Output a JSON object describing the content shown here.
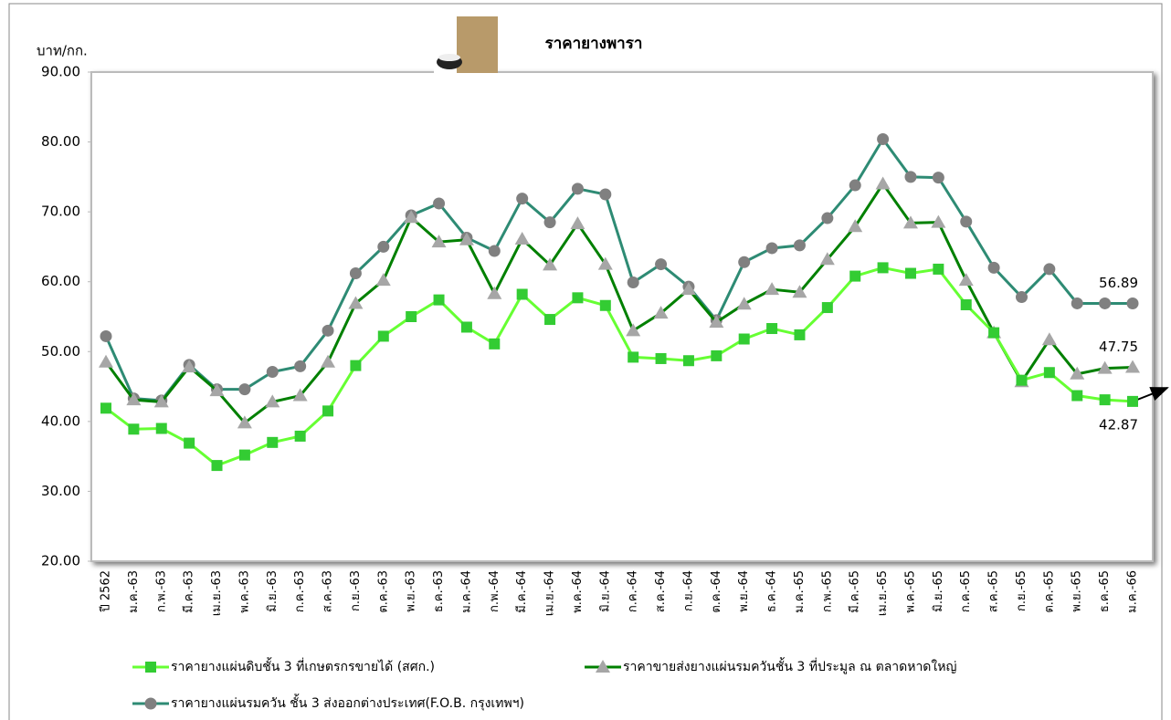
{
  "chart_data": {
    "type": "line",
    "title": "ราคายางพารา",
    "y_label": "บาท/กก.",
    "categories": [
      "ปี 2562",
      "ม.ค.-63",
      "ก.พ.-63",
      "มี.ค.-63",
      "เม.ย.-63",
      "พ.ค.-63",
      "มิ.ย.-63",
      "ก.ค.-63",
      "ส.ค.-63",
      "ก.ย.-63",
      "ต.ค.-63",
      "พ.ย.-63",
      "ธ.ค.-63",
      "ม.ค.-64",
      "ก.พ.-64",
      "มี.ค.-64",
      "เม.ย.-64",
      "พ.ค.-64",
      "มิ.ย.-64",
      "ก.ค.-64",
      "ส.ค.-64",
      "ก.ย.-64",
      "ต.ค.-64",
      "พ.ย.-64",
      "ธ.ค.-64",
      "ม.ค.-65",
      "ก.พ.-65",
      "มี.ค.-65",
      "เม.ย.-65",
      "พ.ค.-65",
      "มิ.ย.-65",
      "ก.ค.-65",
      "ส.ค.-65",
      "ก.ย.-65",
      "ต.ค.-65",
      "พ.ย.-65",
      "ธ.ค.-65",
      "ม.ค.-66"
    ],
    "series": [
      {
        "name": "ราคายางแผ่นดิบชั้น 3 ที่เกษตรกรขายได้ (สศก.)",
        "color": "#66ff33",
        "marker_color": "#33cc33",
        "marker": "square",
        "values": [
          41.9,
          38.9,
          39.0,
          36.9,
          33.7,
          35.2,
          37.0,
          37.9,
          41.5,
          48.0,
          52.2,
          55.0,
          57.4,
          53.5,
          51.1,
          58.2,
          54.6,
          57.7,
          56.6,
          49.2,
          49.0,
          48.7,
          49.4,
          51.8,
          53.3,
          52.4,
          56.3,
          60.8,
          62.0,
          61.2,
          61.8,
          56.7,
          52.7,
          45.9,
          47.0,
          43.7,
          43.1,
          42.87
        ]
      },
      {
        "name": "ราคาขายส่งยางแผ่นรมควันชั้น 3 ที่ประมูล ณ ตลาดหาดใหญ่",
        "color": "#008000",
        "marker_color": "#a6a6a6",
        "marker": "triangle",
        "values": [
          48.5,
          43.1,
          42.8,
          47.8,
          44.4,
          39.8,
          42.8,
          43.7,
          48.5,
          56.9,
          60.2,
          69.2,
          65.7,
          66.0,
          58.3,
          66.1,
          62.4,
          68.3,
          62.5,
          53.0,
          55.5,
          58.9,
          54.2,
          56.8,
          58.9,
          58.5,
          63.2,
          67.9,
          74.0,
          68.4,
          68.5,
          60.2,
          52.7,
          45.7,
          51.7,
          46.8,
          47.6,
          47.75
        ]
      },
      {
        "name": "ราคายางแผ่นรมควัน ชั้น 3 ส่งออกต่างประเทศ(F.O.B. กรุงเทพฯ)",
        "color": "#2e8b74",
        "marker_color": "#808080",
        "marker": "circle",
        "values": [
          52.2,
          43.3,
          43.0,
          48.1,
          44.6,
          44.6,
          47.1,
          47.9,
          53.0,
          61.2,
          65.0,
          69.5,
          71.2,
          66.3,
          64.4,
          71.9,
          68.5,
          73.3,
          72.5,
          59.9,
          62.5,
          59.3,
          54.5,
          62.8,
          64.8,
          65.2,
          69.1,
          73.8,
          80.4,
          75.0,
          74.9,
          68.6,
          62.0,
          57.8,
          61.8,
          56.9,
          56.9,
          56.89
        ]
      }
    ],
    "ylim": [
      20,
      90
    ],
    "yticks": [
      {
        "value": 20,
        "label": "20.00"
      },
      {
        "value": 30,
        "label": "30.00"
      },
      {
        "value": 40,
        "label": "40.00"
      },
      {
        "value": 50,
        "label": "50.00"
      },
      {
        "value": 60,
        "label": "60.00"
      },
      {
        "value": 70,
        "label": "70.00"
      },
      {
        "value": 80,
        "label": "80.00"
      },
      {
        "value": 90,
        "label": "90.00"
      }
    ],
    "grid": false
  }
}
